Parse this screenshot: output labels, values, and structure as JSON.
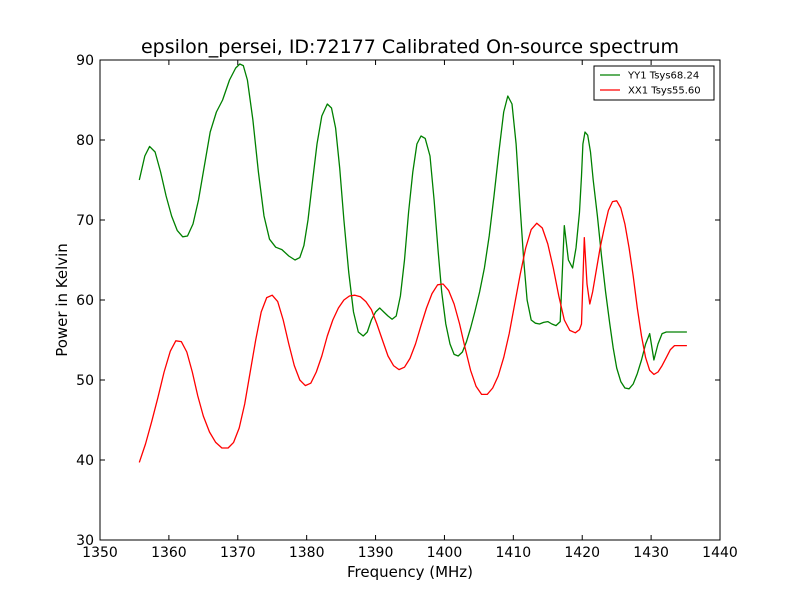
{
  "chart_data": {
    "type": "line",
    "title": "epsilon_persei, ID:72177 Calibrated On-source spectrum",
    "xlabel": "Frequency (MHz)",
    "ylabel": "Power in Kelvin",
    "xlim": [
      1350,
      1440
    ],
    "ylim": [
      30,
      90
    ],
    "xticks": [
      1350,
      1360,
      1370,
      1380,
      1390,
      1400,
      1410,
      1420,
      1430,
      1440
    ],
    "yticks": [
      30,
      40,
      50,
      60,
      70,
      80,
      90
    ],
    "grid": false,
    "legend_position": "top-right",
    "series": [
      {
        "name": "YY1 Tsys68.24",
        "color": "#008000",
        "x": [
          1355.7,
          1356.5,
          1357.2,
          1358.0,
          1358.8,
          1359.6,
          1360.4,
          1361.2,
          1362.0,
          1362.7,
          1363.5,
          1364.3,
          1365.1,
          1366.0,
          1366.9,
          1367.8,
          1368.8,
          1369.7,
          1370.3,
          1370.8,
          1371.4,
          1372.2,
          1373.0,
          1373.8,
          1374.6,
          1375.5,
          1376.4,
          1377.4,
          1378.3,
          1379.0,
          1379.6,
          1380.2,
          1380.8,
          1381.5,
          1382.2,
          1383.0,
          1383.6,
          1384.2,
          1384.8,
          1385.4,
          1386.1,
          1386.8,
          1387.5,
          1388.2,
          1388.8,
          1389.4,
          1390.0,
          1390.6,
          1391.2,
          1391.8,
          1392.4,
          1393.0,
          1393.6,
          1394.2,
          1394.8,
          1395.4,
          1396.0,
          1396.6,
          1397.2,
          1397.9,
          1398.5,
          1399.1,
          1399.6,
          1400.2,
          1400.8,
          1401.4,
          1402.0,
          1402.6,
          1403.2,
          1403.8,
          1404.4,
          1405.1,
          1405.8,
          1406.5,
          1407.2,
          1407.9,
          1408.6,
          1409.2,
          1409.8,
          1410.4,
          1411.0,
          1411.5,
          1412.0,
          1412.6,
          1413.2,
          1413.8,
          1414.4,
          1415.0,
          1415.6,
          1416.2,
          1416.8,
          1417.4,
          1418.0,
          1418.6,
          1419.1,
          1419.6,
          1419.9,
          1420.1,
          1420.4,
          1420.8,
          1421.2,
          1421.6,
          1422.2,
          1422.8,
          1423.4,
          1424.0,
          1424.5,
          1425.0,
          1425.6,
          1426.2,
          1426.8,
          1427.4,
          1428.0,
          1428.6,
          1429.2,
          1429.8,
          1430.4,
          1431.0,
          1431.6,
          1432.2,
          1432.8,
          1433.4,
          1434.0,
          1434.6,
          1435.2
        ],
        "y": [
          75.0,
          78.0,
          79.2,
          78.5,
          76.0,
          73.0,
          70.5,
          68.7,
          67.9,
          68.0,
          69.5,
          72.5,
          76.5,
          81.0,
          83.5,
          85.0,
          87.5,
          89.0,
          89.5,
          89.3,
          87.5,
          82.5,
          76.0,
          70.5,
          67.6,
          66.6,
          66.3,
          65.5,
          65.0,
          65.3,
          66.8,
          70.0,
          74.5,
          79.5,
          83.0,
          84.5,
          84.0,
          81.5,
          76.5,
          70.0,
          63.5,
          58.5,
          56.0,
          55.5,
          56.0,
          57.5,
          58.5,
          59.0,
          58.5,
          58.0,
          57.6,
          58.0,
          60.5,
          65.0,
          71.0,
          76.0,
          79.5,
          80.5,
          80.2,
          78.0,
          72.5,
          66.0,
          61.0,
          57.0,
          54.5,
          53.2,
          53.0,
          53.5,
          54.8,
          56.5,
          58.5,
          61.0,
          64.0,
          68.0,
          73.0,
          78.5,
          83.5,
          85.5,
          84.5,
          79.5,
          71.5,
          65.0,
          60.0,
          57.5,
          57.1,
          57.0,
          57.2,
          57.3,
          57.0,
          56.8,
          57.3,
          69.3,
          65.0,
          64.0,
          66.5,
          71.0,
          75.5,
          79.5,
          81.0,
          80.6,
          78.5,
          75.0,
          70.5,
          65.5,
          61.0,
          57.0,
          54.0,
          51.5,
          49.8,
          49.0,
          48.9,
          49.5,
          50.8,
          52.5,
          54.5,
          55.8,
          52.5,
          54.5,
          55.8,
          56.0,
          56.0,
          56.0,
          56.0,
          56.0,
          56.0
        ],
        "_note": ""
      },
      {
        "name": "XX1 Tsys55.60",
        "color": "#ff0000",
        "x": [
          1355.7,
          1356.6,
          1357.5,
          1358.4,
          1359.3,
          1360.2,
          1361.0,
          1361.8,
          1362.6,
          1363.4,
          1364.2,
          1365.0,
          1365.9,
          1366.8,
          1367.7,
          1368.6,
          1369.4,
          1370.2,
          1371.0,
          1371.8,
          1372.6,
          1373.4,
          1374.2,
          1375.0,
          1375.8,
          1376.6,
          1377.4,
          1378.2,
          1379.0,
          1379.8,
          1380.6,
          1381.4,
          1382.2,
          1383.0,
          1383.8,
          1384.6,
          1385.4,
          1386.2,
          1387.0,
          1387.8,
          1388.6,
          1389.4,
          1390.2,
          1391.0,
          1391.8,
          1392.6,
          1393.4,
          1394.2,
          1395.0,
          1395.8,
          1396.6,
          1397.4,
          1398.2,
          1399.0,
          1399.8,
          1400.6,
          1401.4,
          1402.2,
          1403.0,
          1403.8,
          1404.6,
          1405.4,
          1406.2,
          1407.0,
          1407.8,
          1408.6,
          1409.4,
          1410.2,
          1411.0,
          1411.8,
          1412.6,
          1413.4,
          1414.2,
          1415.0,
          1415.8,
          1416.6,
          1417.4,
          1418.2,
          1419.0,
          1419.6,
          1419.9,
          1420.3,
          1420.7,
          1421.1,
          1421.5,
          1422.0,
          1422.6,
          1423.2,
          1423.8,
          1424.4,
          1425.0,
          1425.6,
          1426.2,
          1426.8,
          1427.4,
          1428.0,
          1428.6,
          1429.2,
          1429.8,
          1430.4,
          1431.0,
          1431.6,
          1432.2,
          1432.8,
          1433.4,
          1434.0,
          1434.6,
          1435.2
        ],
        "y": [
          39.7,
          42.0,
          44.8,
          47.8,
          51.0,
          53.6,
          54.9,
          54.8,
          53.5,
          51.0,
          48.0,
          45.5,
          43.5,
          42.2,
          41.5,
          41.5,
          42.2,
          44.0,
          47.0,
          51.0,
          55.0,
          58.5,
          60.3,
          60.6,
          59.8,
          57.5,
          54.5,
          51.8,
          50.0,
          49.3,
          49.6,
          51.0,
          53.0,
          55.5,
          57.5,
          59.0,
          60.0,
          60.5,
          60.6,
          60.4,
          59.8,
          58.8,
          57.0,
          55.0,
          53.0,
          51.8,
          51.3,
          51.6,
          52.7,
          54.5,
          56.8,
          59.0,
          60.8,
          61.9,
          62.0,
          61.2,
          59.5,
          57.0,
          54.0,
          51.2,
          49.2,
          48.2,
          48.2,
          49.0,
          50.5,
          52.8,
          55.8,
          59.5,
          63.2,
          66.5,
          68.8,
          69.6,
          69.0,
          67.0,
          64.0,
          60.5,
          57.5,
          56.2,
          55.9,
          56.3,
          57.0,
          67.8,
          62.0,
          59.5,
          61.0,
          63.5,
          66.5,
          69.0,
          71.2,
          72.3,
          72.4,
          71.5,
          69.5,
          66.5,
          63.0,
          59.0,
          55.5,
          52.8,
          51.2,
          50.7,
          51.0,
          51.8,
          52.8,
          53.8,
          54.3,
          54.3,
          54.3,
          54.3
        ]
      }
    ]
  }
}
